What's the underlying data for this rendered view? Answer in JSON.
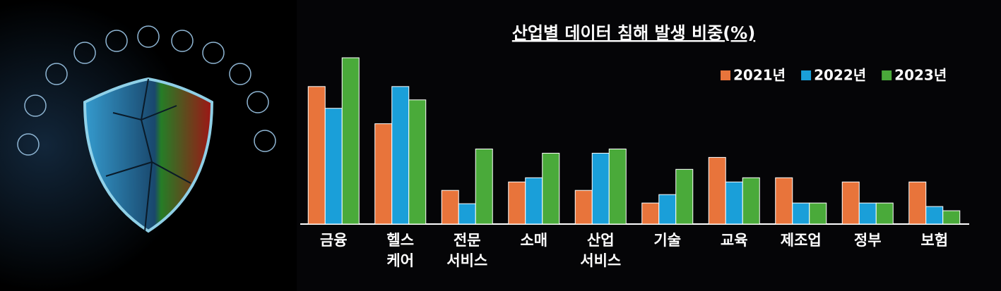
{
  "chart_data": {
    "type": "bar",
    "title": "산업별 데이터 침해 발생 비중(%)",
    "categories": [
      "금융",
      "헬스 케어",
      "전문 서비스",
      "소매",
      "산업 서비스",
      "기술",
      "교육",
      "제조업",
      "정부",
      "보험"
    ],
    "series": [
      {
        "name": "2021년",
        "color": "#e8743b",
        "values": [
          19.6,
          14.3,
          4.8,
          6.0,
          4.8,
          3.0,
          9.5,
          6.6,
          6.0,
          6.0
        ]
      },
      {
        "name": "2022년",
        "color": "#1a9fd9",
        "values": [
          16.5,
          19.6,
          2.9,
          6.6,
          10.1,
          4.2,
          6.0,
          3.0,
          3.0,
          2.5
        ]
      },
      {
        "name": "2023년",
        "color": "#4aaa3a",
        "values": [
          23.7,
          17.7,
          10.7,
          10.1,
          10.7,
          7.8,
          6.6,
          3.0,
          3.0,
          1.9
        ]
      }
    ],
    "legend": "top-right"
  }
}
